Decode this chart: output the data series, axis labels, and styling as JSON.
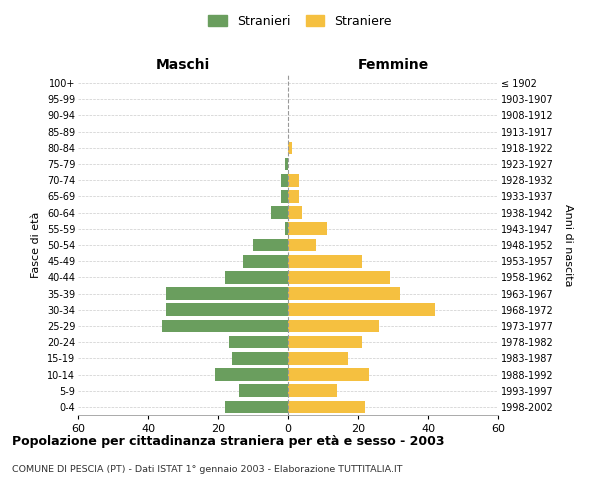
{
  "age_groups": [
    "0-4",
    "5-9",
    "10-14",
    "15-19",
    "20-24",
    "25-29",
    "30-34",
    "35-39",
    "40-44",
    "45-49",
    "50-54",
    "55-59",
    "60-64",
    "65-69",
    "70-74",
    "75-79",
    "80-84",
    "85-89",
    "90-94",
    "95-99",
    "100+"
  ],
  "birth_years": [
    "1998-2002",
    "1993-1997",
    "1988-1992",
    "1983-1987",
    "1978-1982",
    "1973-1977",
    "1968-1972",
    "1963-1967",
    "1958-1962",
    "1953-1957",
    "1948-1952",
    "1943-1947",
    "1938-1942",
    "1933-1937",
    "1928-1932",
    "1923-1927",
    "1918-1922",
    "1913-1917",
    "1908-1912",
    "1903-1907",
    "≤ 1902"
  ],
  "maschi": [
    18,
    14,
    21,
    16,
    17,
    36,
    35,
    35,
    18,
    13,
    10,
    1,
    5,
    2,
    2,
    1,
    0,
    0,
    0,
    0,
    0
  ],
  "femmine": [
    22,
    14,
    23,
    17,
    21,
    26,
    42,
    32,
    29,
    21,
    8,
    11,
    4,
    3,
    3,
    0,
    1,
    0,
    0,
    0,
    0
  ],
  "color_maschi": "#6a9e5e",
  "color_femmine": "#f5c040",
  "background_color": "#ffffff",
  "grid_color": "#cccccc",
  "title": "Popolazione per cittadinanza straniera per età e sesso - 2003",
  "subtitle": "COMUNE DI PESCIA (PT) - Dati ISTAT 1° gennaio 2003 - Elaborazione TUTTITALIA.IT",
  "xlabel_left": "Maschi",
  "xlabel_right": "Femmine",
  "ylabel_left": "Fasce di età",
  "ylabel_right": "Anni di nascita",
  "legend_maschi": "Stranieri",
  "legend_femmine": "Straniere",
  "xlim": 60
}
